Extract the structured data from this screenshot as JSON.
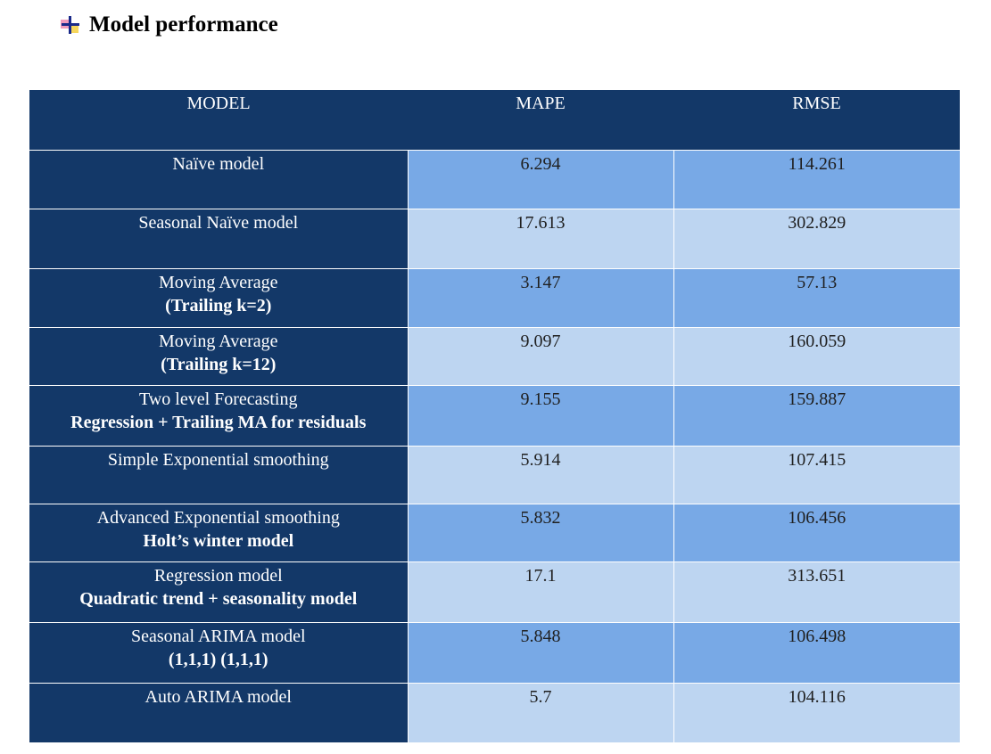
{
  "heading": {
    "icon": "bullet-plus-icon",
    "title": "Model performance"
  },
  "table": {
    "headers": [
      "MODEL",
      "MAPE",
      "RMSE"
    ],
    "rows": [
      {
        "model": "Naïve model",
        "detail": "",
        "mape": "6.294",
        "rmse": "114.261"
      },
      {
        "model": "Seasonal Naïve model",
        "detail": "",
        "mape": "17.613",
        "rmse": "302.829"
      },
      {
        "model": "Moving Average",
        "detail": "(Trailing k=2)",
        "mape": "3.147",
        "rmse": "57.13"
      },
      {
        "model": "Moving Average",
        "detail": "(Trailing k=12)",
        "mape": "9.097",
        "rmse": "160.059"
      },
      {
        "model": "Two level Forecasting",
        "detail": "Regression + Trailing MA for residuals",
        "mape": "9.155",
        "rmse": "159.887"
      },
      {
        "model": "Simple Exponential smoothing",
        "detail": "",
        "mape": "5.914",
        "rmse": "107.415"
      },
      {
        "model": "Advanced Exponential smoothing",
        "detail": "Holt’s winter model",
        "mape": "5.832",
        "rmse": "106.456"
      },
      {
        "model": "Regression model",
        "detail": "Quadratic trend + seasonality model",
        "mape": "17.1",
        "rmse": "313.651"
      },
      {
        "model": "Seasonal ARIMA model",
        "detail": "(1,1,1) (1,1,1)",
        "mape": "5.848",
        "rmse": "106.498"
      },
      {
        "model": "Auto ARIMA model",
        "detail": "",
        "mape": "5.7",
        "rmse": "104.116"
      }
    ]
  },
  "colors": {
    "header_navy": "#133868",
    "row_dark_blue": "#78a9e6",
    "row_light_blue": "#bdd5f1"
  }
}
